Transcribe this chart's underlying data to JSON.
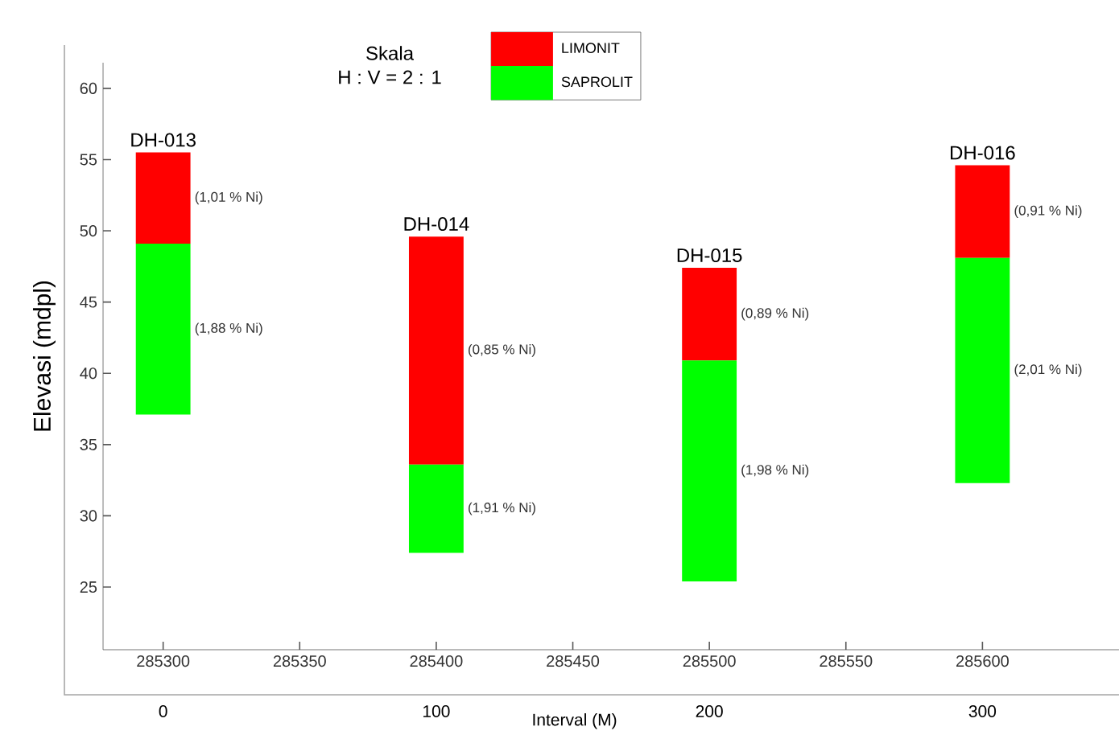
{
  "chart_data": {
    "type": "bar",
    "title": "Skala",
    "subtitle": "H : V = 2 : 1",
    "ylabel": "Elevasi (mdpl)",
    "x2label": "Interval (M)",
    "x": [
      285300,
      285400,
      285500,
      285600
    ],
    "series": [
      {
        "name": "LIMONIT",
        "color": "#ff0000",
        "base": [
          49.1,
          33.6,
          40.9,
          48.1
        ],
        "values": [
          6.4,
          16.0,
          6.5,
          6.5
        ]
      },
      {
        "name": "SAPROLIT",
        "color": "#00ff00",
        "base": [
          37.1,
          27.4,
          25.4,
          32.3
        ],
        "values": [
          12.0,
          6.2,
          15.5,
          15.8
        ]
      }
    ],
    "xlim": [
      285278,
      285650
    ],
    "xticks": [
      285300,
      285350,
      285400,
      285450,
      285500,
      285550,
      285600
    ],
    "x2lim": [
      -22,
      350
    ],
    "x2ticks": [
      0,
      100,
      200,
      300
    ],
    "ylim": [
      20.6,
      61.8
    ],
    "yticks": [
      25,
      30,
      35,
      40,
      45,
      50,
      55,
      60
    ],
    "annotations": [
      {
        "text": "DH-013",
        "x": 285300,
        "y": 55.5
      },
      {
        "text": "DH-014",
        "x": 285400,
        "y": 49.6
      },
      {
        "text": "DH-015",
        "x": 285500,
        "y": 47.4
      },
      {
        "text": "DH-016",
        "x": 285600,
        "y": 54.6
      },
      "(1,01 % Ni)",
      "(1,88 % Ni)",
      "(0,85 % Ni)",
      "(1,91 % Ni)",
      "(0,89 % Ni)",
      "(1,98 % Ni)",
      "(0,91 % Ni)",
      "(2,01 % Ni)"
    ],
    "legend": "top",
    "grid": false
  }
}
